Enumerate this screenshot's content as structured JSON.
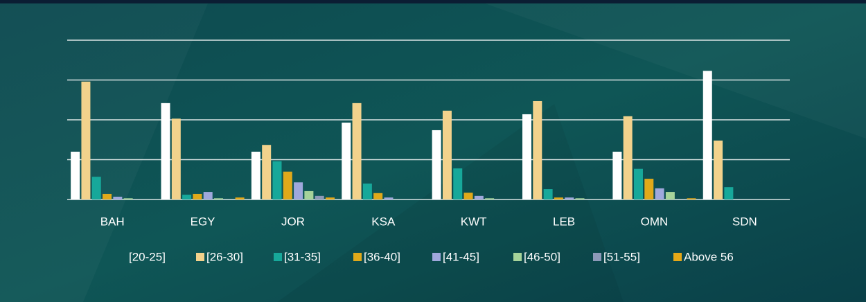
{
  "chart_data": {
    "type": "bar",
    "categories": [
      "BAH",
      "EGY",
      "JOR",
      "KSA",
      "KWT",
      "LEB",
      "OMN",
      "SDN"
    ],
    "series": [
      {
        "name": "[20-25]",
        "color": "#ffffff",
        "values": [
          12,
          24.2,
          12,
          19.3,
          17.4,
          21.4,
          12,
          32.3
        ]
      },
      {
        "name": "[26-30]",
        "color": "#f2d28c",
        "values": [
          29.6,
          20.3,
          13.7,
          24.2,
          22.3,
          24.7,
          20.9,
          14.8
        ]
      },
      {
        "name": "[31-35]",
        "color": "#17a89a",
        "values": [
          5.7,
          1.2,
          9.6,
          4,
          7.8,
          2.6,
          7.7,
          3.1
        ]
      },
      {
        "name": "[36-40]",
        "color": "#e0a91a",
        "values": [
          1.4,
          1.4,
          7,
          1.6,
          1.7,
          0.5,
          5.2,
          0
        ]
      },
      {
        "name": "[41-45]",
        "color": "#9fa8dc",
        "values": [
          0.7,
          1.9,
          4.3,
          0.5,
          0.9,
          0.5,
          2.8,
          0
        ]
      },
      {
        "name": "[46-50]",
        "color": "#a6d39a",
        "values": [
          0.3,
          0.3,
          2.1,
          0,
          0.3,
          0.3,
          1.9,
          0
        ]
      },
      {
        "name": "[51-55]",
        "color": "#8d99b8",
        "values": [
          0,
          0,
          0.9,
          0,
          0,
          0,
          0,
          0
        ]
      },
      {
        "name": "Above 56",
        "color": "#e6a817",
        "values": [
          0,
          0.5,
          0.5,
          0,
          0,
          0,
          0.3,
          0
        ]
      }
    ],
    "ylim": [
      0,
      40
    ],
    "yticks": [
      0,
      10,
      20,
      30,
      40
    ],
    "grid": true
  }
}
